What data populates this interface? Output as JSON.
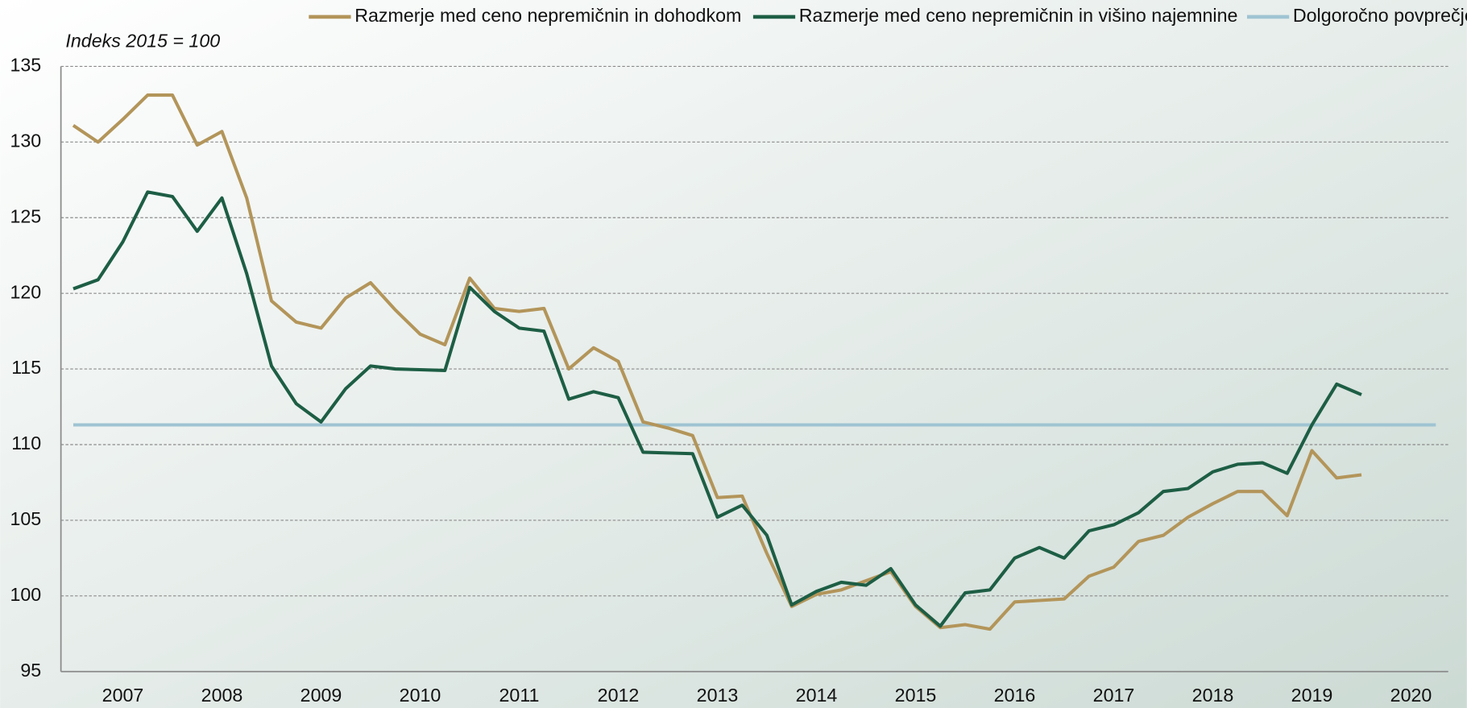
{
  "chart_data": {
    "type": "line",
    "y_label": "Indeks 2015 = 100",
    "categories": [
      null,
      null,
      "2007",
      null,
      null,
      null,
      "2008",
      null,
      null,
      null,
      "2009",
      null,
      null,
      null,
      "2010",
      null,
      null,
      null,
      "2011",
      null,
      null,
      null,
      "2012",
      null,
      null,
      null,
      "2013",
      null,
      null,
      null,
      "2014",
      null,
      null,
      null,
      "2015",
      null,
      null,
      null,
      "2016",
      null,
      null,
      null,
      "2017",
      null,
      null,
      null,
      "2018",
      null,
      null,
      null,
      "2019",
      null,
      null,
      null,
      "2020",
      null
    ],
    "series": [
      {
        "name": "Razmerje med ceno nepremičnin in dohodkom",
        "color": "#b3955a",
        "values": [
          131.1,
          130.0,
          131.5,
          133.1,
          133.1,
          129.8,
          130.7,
          126.3,
          119.5,
          118.1,
          117.7,
          119.7,
          120.7,
          118.9,
          117.3,
          116.6,
          121.0,
          119.0,
          118.8,
          119.0,
          115.0,
          116.4,
          115.5,
          111.5,
          111.1,
          110.6,
          106.5,
          106.6,
          102.8,
          99.3,
          100.1,
          100.4,
          101.0,
          101.6,
          99.3,
          97.9,
          98.1,
          97.8,
          99.6,
          99.7,
          99.8,
          101.3,
          101.9,
          103.6,
          104.0,
          105.2,
          106.1,
          106.9,
          106.9,
          105.3,
          109.6,
          107.8,
          108.0,
          null,
          null,
          null
        ]
      },
      {
        "name": "Razmerje med ceno nepremičnin in višino najemnine",
        "color": "#1d5e45",
        "values": [
          120.3,
          120.9,
          123.4,
          126.7,
          126.4,
          124.1,
          126.3,
          121.3,
          115.2,
          112.7,
          111.5,
          113.7,
          115.2,
          115.0,
          114.95,
          114.9,
          120.4,
          118.8,
          117.7,
          117.5,
          113.0,
          113.5,
          113.1,
          109.5,
          109.45,
          109.4,
          105.2,
          106.0,
          104.0,
          99.4,
          100.3,
          100.9,
          100.7,
          101.8,
          99.4,
          98.0,
          100.2,
          100.4,
          102.5,
          103.2,
          102.5,
          104.3,
          104.7,
          105.5,
          106.9,
          107.1,
          108.2,
          108.7,
          108.8,
          108.1,
          111.3,
          114.0,
          113.3,
          null,
          null,
          null
        ]
      },
      {
        "name": "Dolgoročno povprečje",
        "color": "#9fc4d2",
        "values": [
          111.3,
          111.3,
          111.3,
          111.3,
          111.3,
          111.3,
          111.3,
          111.3,
          111.3,
          111.3,
          111.3,
          111.3,
          111.3,
          111.3,
          111.3,
          111.3,
          111.3,
          111.3,
          111.3,
          111.3,
          111.3,
          111.3,
          111.3,
          111.3,
          111.3,
          111.3,
          111.3,
          111.3,
          111.3,
          111.3,
          111.3,
          111.3,
          111.3,
          111.3,
          111.3,
          111.3,
          111.3,
          111.3,
          111.3,
          111.3,
          111.3,
          111.3,
          111.3,
          111.3,
          111.3,
          111.3,
          111.3,
          111.3,
          111.3,
          111.3,
          111.3,
          111.3,
          111.3,
          111.3,
          111.3,
          111.3
        ]
      }
    ],
    "ylim": [
      95,
      135
    ],
    "yticks": [
      95,
      100,
      105,
      110,
      115,
      120,
      125,
      130,
      135
    ],
    "grid": true,
    "legend": "top"
  }
}
